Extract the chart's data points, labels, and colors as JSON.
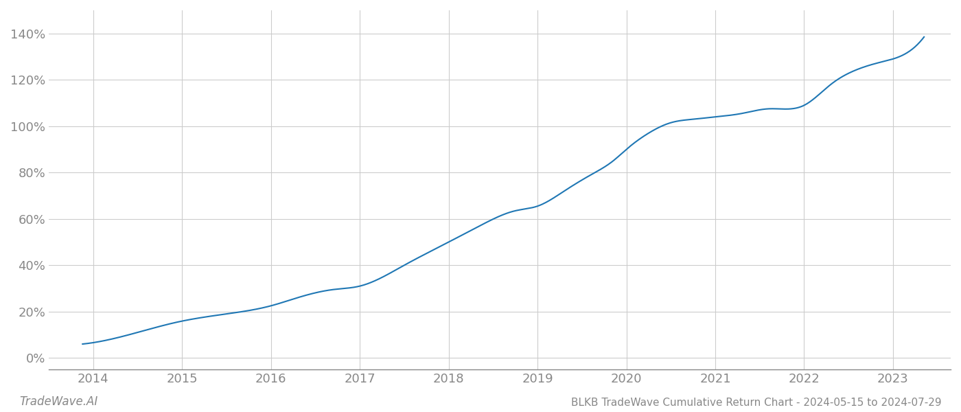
{
  "title": "BLKB TradeWave Cumulative Return Chart - 2024-05-15 to 2024-07-29",
  "footer_left": "TradeWave.AI",
  "line_color": "#1f77b4",
  "line_width": 1.5,
  "background_color": "#ffffff",
  "grid_color": "#cccccc",
  "x_years": [
    2014,
    2015,
    2016,
    2017,
    2018,
    2019,
    2020,
    2021,
    2022,
    2023
  ],
  "y_ticks": [
    0,
    20,
    40,
    60,
    80,
    100,
    120,
    140
  ],
  "ylim": [
    -5,
    150
  ],
  "xlim": [
    2013.5,
    2023.65
  ],
  "key_x": [
    2013.88,
    2014.3,
    2014.95,
    2015.5,
    2016.0,
    2016.3,
    2016.7,
    2017.0,
    2017.5,
    2018.0,
    2018.4,
    2018.75,
    2019.0,
    2019.3,
    2019.6,
    2019.85,
    2020.0,
    2020.25,
    2020.5,
    2020.75,
    2021.0,
    2021.3,
    2021.6,
    2022.0,
    2022.3,
    2022.6,
    2022.85,
    2023.0,
    2023.35
  ],
  "key_y": [
    6.0,
    9.0,
    15.5,
    19.0,
    22.5,
    26.0,
    29.5,
    31.0,
    40.0,
    50.0,
    58.0,
    63.5,
    65.5,
    72.0,
    79.0,
    85.0,
    90.0,
    97.0,
    101.5,
    103.0,
    104.0,
    105.5,
    107.5,
    109.0,
    118.0,
    124.5,
    127.5,
    129.0,
    138.5
  ],
  "tick_color": "#888888",
  "tick_fontsize": 13,
  "footer_fontsize": 12,
  "title_fontsize": 11
}
